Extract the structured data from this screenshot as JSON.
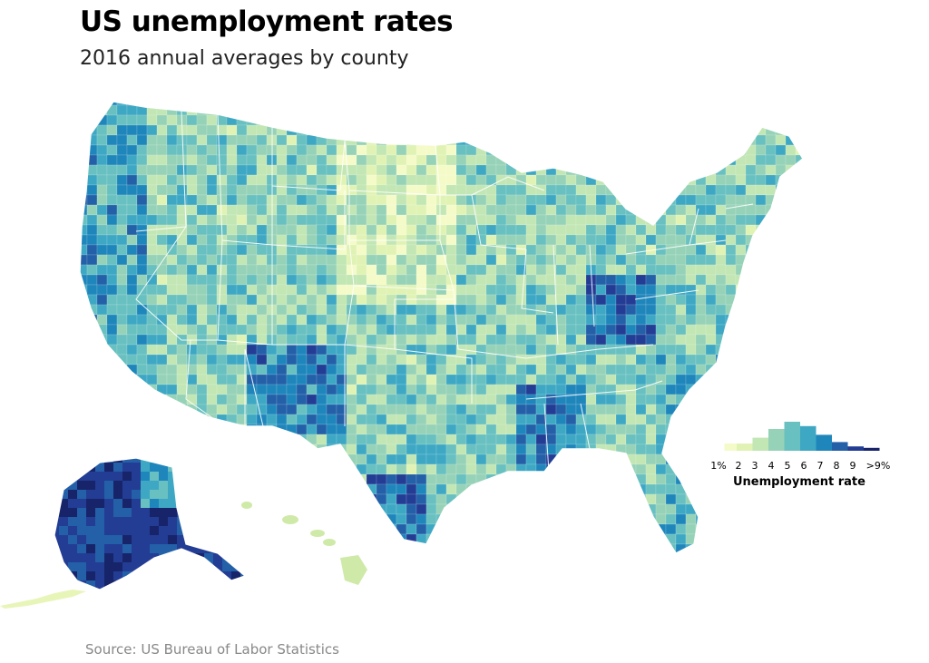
{
  "title": "US unemployment rates",
  "subtitle": "2016 annual averages by county",
  "source": "Source: US Bureau of Labor Statistics",
  "legend": {
    "title": "Unemployment rate",
    "ticks": [
      "1%",
      "2",
      "3",
      "4",
      "5",
      "6",
      "7",
      "8",
      "9",
      ">9%"
    ],
    "histogram": [
      0.25,
      0.45,
      0.75,
      1.0,
      0.85,
      0.55,
      0.3,
      0.15,
      0.1
    ]
  },
  "colors": {
    "scale": [
      "#f4fbc8",
      "#e0f3b4",
      "#c2e6b4",
      "#96d2b8",
      "#68c0c0",
      "#3ea8c4",
      "#1f86bc",
      "#2360a8",
      "#233c94",
      "#17246a"
    ],
    "state_border": "#ffffff"
  }
}
